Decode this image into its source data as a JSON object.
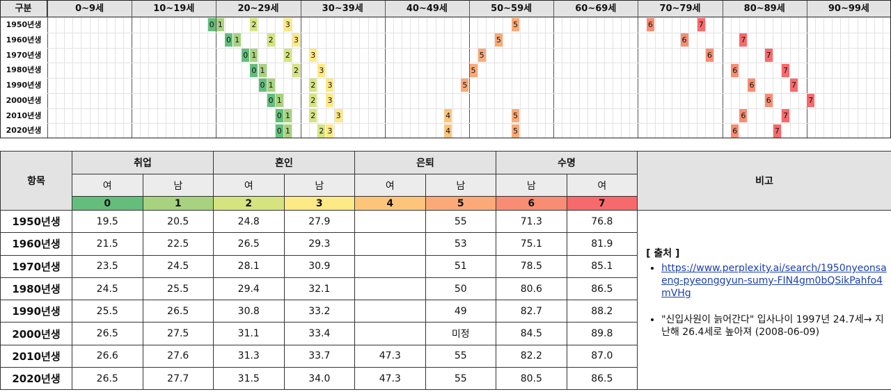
{
  "timeline": {
    "corner_label": "구분",
    "age_bands": [
      "0~9세",
      "10~19세",
      "20~29세",
      "30~39세",
      "40~49세",
      "50~59세",
      "60~69세",
      "70~79세",
      "80~89세",
      "90~99세"
    ],
    "cohorts": [
      "1950년생",
      "1960년생",
      "1970년생",
      "1980년생",
      "1990년생",
      "2000년생",
      "2010년생",
      "2020년생"
    ],
    "colors": [
      "#63be7b",
      "#a8d27f",
      "#d6e480",
      "#fde985",
      "#fcc57a",
      "#fbaa77",
      "#f88d73",
      "#f8696b"
    ],
    "marks": [
      [
        {
          "age": 19,
          "code": "0"
        },
        {
          "age": 20,
          "code": "1"
        },
        {
          "age": 24,
          "code": "2"
        },
        {
          "age": 28,
          "code": "3"
        },
        {
          "age": 55,
          "code": "5"
        },
        {
          "age": 71,
          "code": "6"
        },
        {
          "age": 77,
          "code": "7"
        }
      ],
      [
        {
          "age": 21,
          "code": "0"
        },
        {
          "age": 22,
          "code": "1"
        },
        {
          "age": 26,
          "code": "2"
        },
        {
          "age": 29,
          "code": "3"
        },
        {
          "age": 53,
          "code": "5"
        },
        {
          "age": 75,
          "code": "6"
        },
        {
          "age": 82,
          "code": "7"
        }
      ],
      [
        {
          "age": 23,
          "code": "0"
        },
        {
          "age": 24,
          "code": "1"
        },
        {
          "age": 28,
          "code": "2"
        },
        {
          "age": 31,
          "code": "3"
        },
        {
          "age": 51,
          "code": "5"
        },
        {
          "age": 78,
          "code": "6"
        },
        {
          "age": 85,
          "code": "7"
        }
      ],
      [
        {
          "age": 24,
          "code": "0"
        },
        {
          "age": 25,
          "code": "1"
        },
        {
          "age": 29,
          "code": "2"
        },
        {
          "age": 32,
          "code": "3"
        },
        {
          "age": 50,
          "code": "5"
        },
        {
          "age": 81,
          "code": "6"
        },
        {
          "age": 87,
          "code": "7"
        }
      ],
      [
        {
          "age": 25,
          "code": "0"
        },
        {
          "age": 26,
          "code": "1"
        },
        {
          "age": 31,
          "code": "2"
        },
        {
          "age": 33,
          "code": "3"
        },
        {
          "age": 49,
          "code": "5"
        },
        {
          "age": 83,
          "code": "6"
        },
        {
          "age": 88,
          "code": "7"
        }
      ],
      [
        {
          "age": 26,
          "code": "0"
        },
        {
          "age": 27,
          "code": "1"
        },
        {
          "age": 31,
          "code": "2"
        },
        {
          "age": 33,
          "code": "3"
        },
        {
          "age": 85,
          "code": "6"
        },
        {
          "age": 90,
          "code": "7"
        }
      ],
      [
        {
          "age": 27,
          "code": "0"
        },
        {
          "age": 28,
          "code": "1"
        },
        {
          "age": 31,
          "code": "2"
        },
        {
          "age": 34,
          "code": "3"
        },
        {
          "age": 47,
          "code": "4"
        },
        {
          "age": 55,
          "code": "5"
        },
        {
          "age": 82,
          "code": "6"
        },
        {
          "age": 87,
          "code": "7"
        }
      ],
      [
        {
          "age": 27,
          "code": "0"
        },
        {
          "age": 28,
          "code": "1"
        },
        {
          "age": 32,
          "code": "2"
        },
        {
          "age": 33,
          "code": "3"
        },
        {
          "age": 47,
          "code": "4"
        },
        {
          "age": 55,
          "code": "5"
        },
        {
          "age": 81,
          "code": "6"
        },
        {
          "age": 86,
          "code": "7"
        }
      ]
    ]
  },
  "summary": {
    "item_header": "항목",
    "note_header": "비고",
    "groups": [
      {
        "name": "취업",
        "subs": [
          {
            "label": "여",
            "code": "0"
          },
          {
            "label": "남",
            "code": "1"
          }
        ]
      },
      {
        "name": "혼인",
        "subs": [
          {
            "label": "여",
            "code": "2"
          },
          {
            "label": "남",
            "code": "3"
          }
        ]
      },
      {
        "name": "은퇴",
        "subs": [
          {
            "label": "여",
            "code": "4"
          },
          {
            "label": "남",
            "code": "5"
          }
        ]
      },
      {
        "name": "수명",
        "subs": [
          {
            "label": "남",
            "code": "6"
          },
          {
            "label": "여",
            "code": "7"
          }
        ]
      }
    ],
    "rows": [
      {
        "label": "1950년생",
        "values": [
          "19.5",
          "20.5",
          "24.8",
          "27.9",
          "",
          "55",
          "71.3",
          "76.8"
        ]
      },
      {
        "label": "1960년생",
        "values": [
          "21.5",
          "22.5",
          "26.5",
          "29.3",
          "",
          "53",
          "75.1",
          "81.9"
        ]
      },
      {
        "label": "1970년생",
        "values": [
          "23.5",
          "24.5",
          "28.1",
          "30.9",
          "",
          "51",
          "78.5",
          "85.1"
        ]
      },
      {
        "label": "1980년생",
        "values": [
          "24.5",
          "25.5",
          "29.4",
          "32.1",
          "",
          "50",
          "80.6",
          "86.5"
        ]
      },
      {
        "label": "1990년생",
        "values": [
          "25.5",
          "26.5",
          "30.8",
          "33.2",
          "",
          "49",
          "82.7",
          "88.2"
        ]
      },
      {
        "label": "2000년생",
        "values": [
          "26.5",
          "27.5",
          "31.1",
          "33.4",
          "",
          "미정",
          "84.5",
          "89.8"
        ]
      },
      {
        "label": "2010년생",
        "values": [
          "26.6",
          "27.6",
          "31.3",
          "33.7",
          "47.3",
          "55",
          "82.2",
          "87.0"
        ]
      },
      {
        "label": "2020년생",
        "values": [
          "26.5",
          "27.7",
          "31.5",
          "34.0",
          "47.3",
          "55",
          "80.5",
          "86.5"
        ]
      }
    ],
    "notes": {
      "source_title": "[ 출처 ]",
      "link_text": "https://www.perplexity.ai/search/1950nyeonsaeng-pyeonggyun-sumy-FIN4gm0bQSikPahfo4mVHg",
      "article": "\"신입사원이 늙어간다\" 입사나이 1997년 24.7세→ 지난해 26.4세로 높아져 (2008-06-09)"
    }
  }
}
